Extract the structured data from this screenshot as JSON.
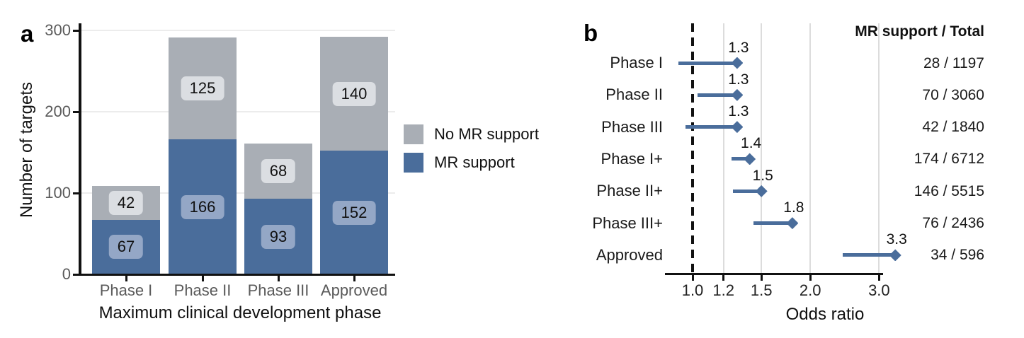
{
  "figure": {
    "description": "Two-panel figure: stacked bar chart of drug targets by clinical phase and MR support, plus forest plot of odds ratios"
  },
  "panel_a": {
    "letter": "a",
    "ylabel": "Number of targets",
    "xlabel": "Maximum clinical development phase",
    "ytick_labels": [
      "0",
      "100",
      "200",
      "300"
    ],
    "legend": {
      "items": [
        {
          "label": "No MR support",
          "color": "#a9aeb5"
        },
        {
          "label": "MR support",
          "color": "#4a6d9b"
        }
      ]
    }
  },
  "panel_b": {
    "letter": "b",
    "header": "MR support / Total",
    "xlabel": "Odds ratio",
    "xtick_labels": [
      "1.0",
      "1.2",
      "1.5",
      "2.0",
      "3.0"
    ]
  },
  "colors": {
    "mr_support_blue": "#4a6d9b",
    "no_mr_support_gray": "#a9aeb5",
    "label_box_blue": "#94a7c6",
    "label_box_gray": "#dbdee2",
    "grid_panel_a": "#ececec",
    "grid_panel_b": "#dcdcdc",
    "axis_black": "#111111",
    "tick_text_gray": "#5a5a5a",
    "text_black": "#1a1a1a"
  },
  "chart_data": [
    {
      "type": "bar",
      "panel": "a",
      "stacked": true,
      "categories": [
        "Phase I",
        "Phase II",
        "Phase III",
        "Approved"
      ],
      "series": [
        {
          "name": "MR support",
          "color": "#4a6d9b",
          "label_bg": "#94a7c6",
          "values": [
            67,
            166,
            93,
            152
          ]
        },
        {
          "name": "No MR support",
          "color": "#a9aeb5",
          "label_bg": "#dbdee2",
          "values": [
            42,
            125,
            68,
            140
          ]
        }
      ],
      "totals": [
        109,
        291,
        161,
        292
      ],
      "title": "",
      "xlabel": "Maximum clinical development phase",
      "ylabel": "Number of targets",
      "yticks": [
        0,
        100,
        200,
        300
      ],
      "ylim": [
        0,
        300
      ],
      "grid": "horizontal",
      "legend_position": "right"
    },
    {
      "type": "scatter",
      "subtype": "forest-plot",
      "panel": "b",
      "xscale": "log",
      "xlabel": "Odds ratio",
      "xticks": [
        1.0,
        1.2,
        1.5,
        2.0,
        3.0
      ],
      "xlim": [
        0.87,
        3.6
      ],
      "refline": 1.0,
      "grid": "vertical",
      "marker": "diamond",
      "marker_color": "#4a6d9b",
      "header": "MR support / Total",
      "rows": [
        {
          "label": "Phase I",
          "odds_ratio": 1.3,
          "value_label": "1.3",
          "line_start": 0.92,
          "mr_support": 28,
          "total": 1197,
          "counts": "28 / 1197"
        },
        {
          "label": "Phase II",
          "odds_ratio": 1.3,
          "value_label": "1.3",
          "line_start": 1.03,
          "mr_support": 70,
          "total": 3060,
          "counts": "70 / 3060"
        },
        {
          "label": "Phase III",
          "odds_ratio": 1.3,
          "value_label": "1.3",
          "line_start": 0.96,
          "mr_support": 42,
          "total": 1840,
          "counts": "42 / 1840"
        },
        {
          "label": "Phase I+",
          "odds_ratio": 1.4,
          "value_label": "1.4",
          "line_start": 1.26,
          "mr_support": 174,
          "total": 6712,
          "counts": "174 / 6712"
        },
        {
          "label": "Phase II+",
          "odds_ratio": 1.5,
          "value_label": "1.5",
          "line_start": 1.27,
          "mr_support": 146,
          "total": 5515,
          "counts": "146 / 5515"
        },
        {
          "label": "Phase III+",
          "odds_ratio": 1.8,
          "value_label": "1.8",
          "line_start": 1.43,
          "mr_support": 76,
          "total": 2436,
          "counts": "76 / 2436"
        },
        {
          "label": "Approved",
          "odds_ratio": 3.3,
          "value_label": "3.3",
          "line_start": 2.42,
          "mr_support": 34,
          "total": 596,
          "counts": "34 / 596"
        }
      ]
    }
  ]
}
